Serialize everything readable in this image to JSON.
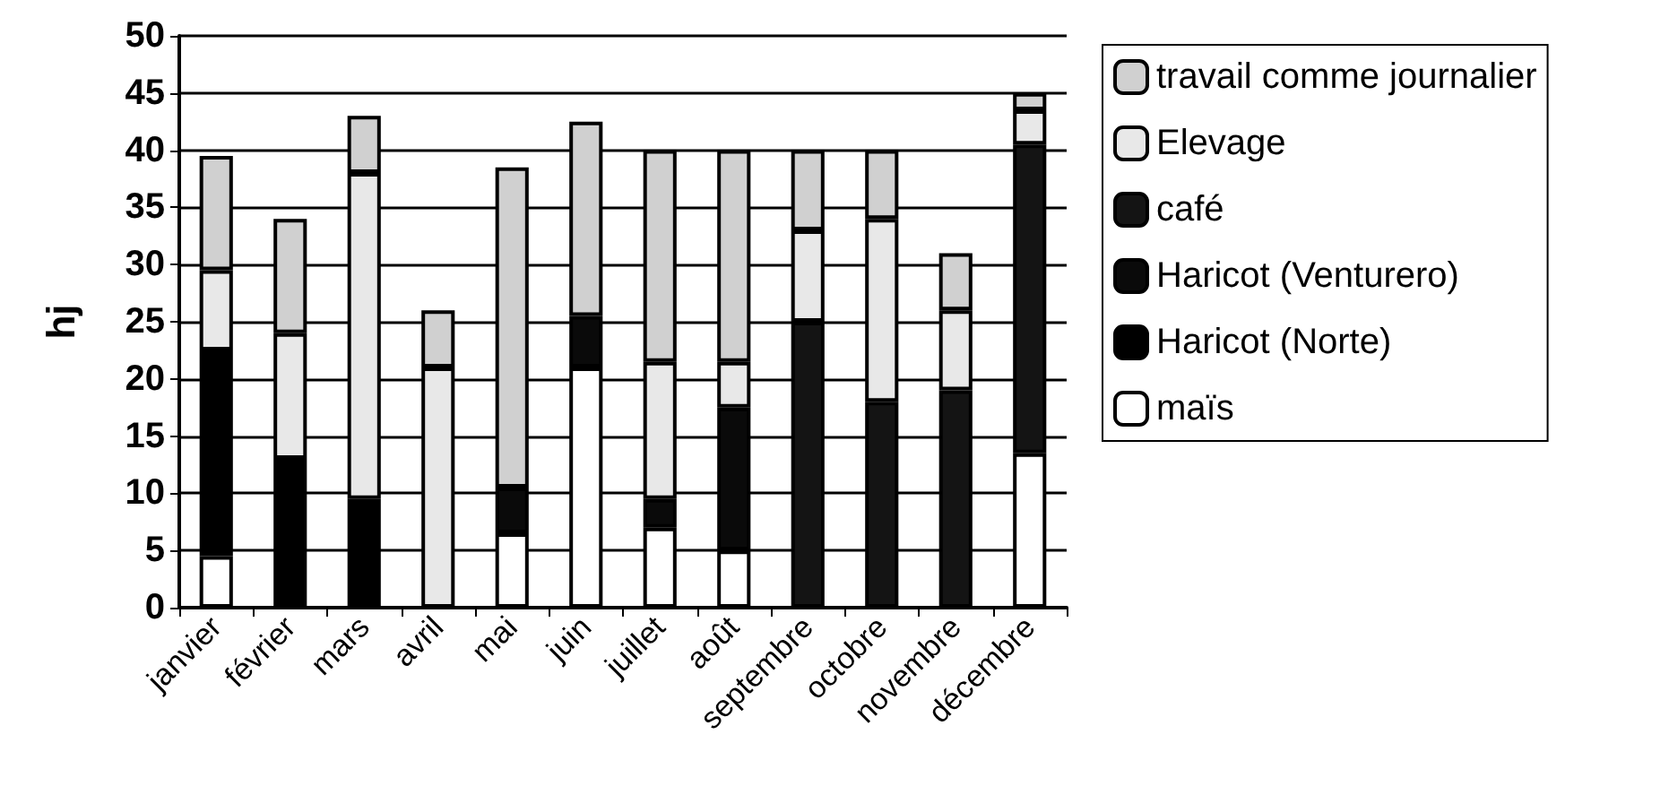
{
  "chart_data": {
    "type": "bar",
    "stacked": true,
    "ylabel": "hj",
    "categories": [
      "janvier",
      "février",
      "mars",
      "avril",
      "mai",
      "juin",
      "juillet",
      "août",
      "septembre",
      "octobre",
      "novembre",
      "décembre"
    ],
    "series": [
      {
        "name": "maïs",
        "color": "#ffffff",
        "values": [
          4.5,
          0,
          0,
          0,
          6.5,
          21,
          7,
          5,
          0,
          0,
          0,
          13.5
        ]
      },
      {
        "name": "Haricot (Norte)",
        "color": "#000000",
        "values": [
          18,
          13,
          9.5,
          0,
          0,
          0,
          0,
          0,
          0,
          0,
          0,
          0
        ]
      },
      {
        "name": "Haricot (Venturero)",
        "color": "#0a0a0a",
        "values": [
          0,
          0,
          0,
          0,
          4,
          4.5,
          2.5,
          12.5,
          0,
          0,
          0,
          0
        ]
      },
      {
        "name": "café",
        "color": "#141414",
        "values": [
          0,
          0,
          0,
          0,
          0,
          0,
          0,
          0,
          25,
          18,
          19,
          27
        ]
      },
      {
        "name": "Elevage",
        "color": "#e8e8e8",
        "values": [
          7,
          11,
          28.5,
          21,
          0,
          0,
          12,
          4,
          8,
          16,
          7,
          3
        ]
      },
      {
        "name": "travail comme journalier",
        "color": "#d0d0d0",
        "values": [
          10,
          10,
          5,
          5,
          28,
          17,
          18.5,
          18.5,
          7,
          6,
          5,
          1.5
        ]
      }
    ],
    "ylim": [
      0,
      50
    ],
    "yticks": [
      0,
      5,
      10,
      15,
      20,
      25,
      30,
      35,
      40,
      45,
      50
    ],
    "grid": "y",
    "legend": "right"
  }
}
